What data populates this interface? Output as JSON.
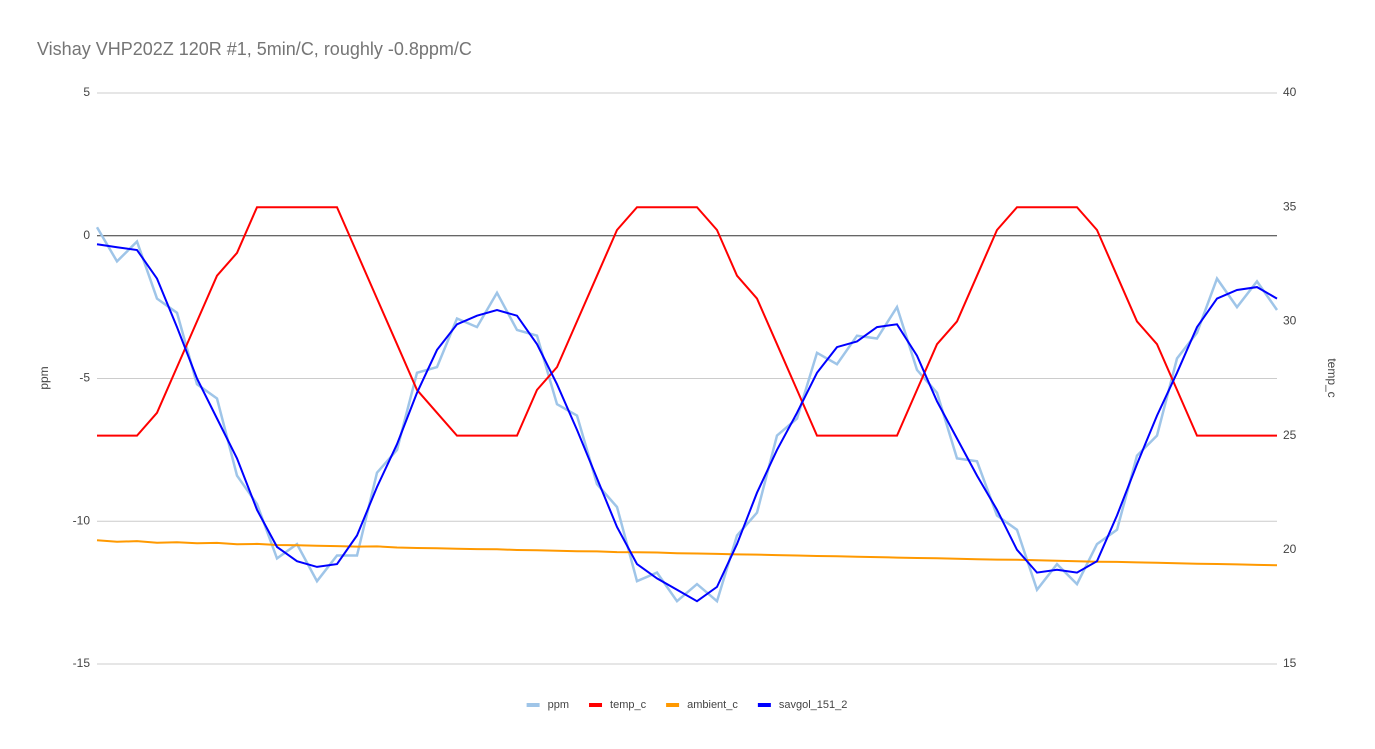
{
  "chart_data": {
    "type": "line",
    "title": "Vishay VHP202Z 120R #1, 5min/C, roughly -0.8ppm/C",
    "y_label": "ppm",
    "y2_label": "temp_c",
    "ylim": [
      -15,
      5
    ],
    "yticks": [
      -15,
      -10,
      -5,
      0,
      5
    ],
    "y2lim": [
      15,
      40
    ],
    "y2ticks": [
      15,
      20,
      25,
      30,
      35,
      40
    ],
    "grid": true,
    "legend": "bottom",
    "series": [
      {
        "name": "ppm",
        "color": "#9fc5e8",
        "values": [
          0.3,
          -0.9,
          -0.2,
          -2.2,
          -2.7,
          -5.2,
          -5.7,
          -8.4,
          -9.4,
          -11.3,
          -10.8,
          -12.1,
          -11.2,
          -11.2,
          -8.3,
          -7.5,
          -4.8,
          -4.6,
          -2.9,
          -3.2,
          -2.0,
          -3.3,
          -3.5,
          -5.9,
          -6.3,
          -8.7,
          -9.5,
          -12.1,
          -11.8,
          -12.8,
          -12.2,
          -12.8,
          -10.5,
          -9.7,
          -7.0,
          -6.4,
          -4.1,
          -4.5,
          -3.5,
          -3.6,
          -2.5,
          -4.7,
          -5.5,
          -7.8,
          -7.9,
          -9.8,
          -10.3,
          -12.4,
          -11.5,
          -12.2,
          -10.8,
          -10.3,
          -7.7,
          -7.0,
          -4.3,
          -3.4,
          -1.5,
          -2.5,
          -1.6,
          -2.6
        ]
      },
      {
        "name": "temp_c",
        "color": "#ff0000",
        "axis": "y2",
        "values": [
          25,
          25,
          25,
          26,
          28,
          30,
          32,
          33,
          35,
          35,
          35,
          35,
          35,
          33,
          31,
          29,
          27,
          26,
          25,
          25,
          25,
          25,
          27,
          28,
          30,
          32,
          34,
          35,
          35,
          35,
          35,
          34,
          32,
          31,
          29,
          27,
          25,
          25,
          25,
          25,
          25,
          27,
          29,
          30,
          32,
          34,
          35,
          35,
          35,
          35,
          34,
          32,
          30,
          29,
          27,
          25,
          25,
          25,
          25,
          25
        ]
      },
      {
        "name": "ambient_c",
        "color": "#ff9900",
        "axis": "y2",
        "values": [
          20.42,
          20.35,
          20.38,
          20.31,
          20.33,
          20.29,
          20.3,
          20.24,
          20.26,
          20.21,
          20.2,
          20.18,
          20.16,
          20.14,
          20.15,
          20.1,
          20.08,
          20.07,
          20.05,
          20.03,
          20.02,
          19.99,
          19.98,
          19.96,
          19.94,
          19.93,
          19.9,
          19.89,
          19.88,
          19.85,
          19.84,
          19.82,
          19.8,
          19.79,
          19.77,
          19.75,
          19.73,
          19.72,
          19.7,
          19.68,
          19.66,
          19.64,
          19.63,
          19.61,
          19.59,
          19.57,
          19.56,
          19.54,
          19.52,
          19.5,
          19.48,
          19.47,
          19.45,
          19.43,
          19.41,
          19.39,
          19.38,
          19.36,
          19.34,
          19.32
        ]
      },
      {
        "name": "savgol_151_2",
        "color": "#0000ff",
        "values": [
          -0.3,
          -0.4,
          -0.5,
          -1.5,
          -3.2,
          -5,
          -6.4,
          -7.8,
          -9.6,
          -10.9,
          -11.4,
          -11.6,
          -11.5,
          -10.5,
          -8.8,
          -7.3,
          -5.5,
          -4,
          -3.1,
          -2.8,
          -2.6,
          -2.8,
          -3.8,
          -5.2,
          -6.8,
          -8.5,
          -10.2,
          -11.5,
          -12,
          -12.4,
          -12.8,
          -12.3,
          -10.8,
          -9,
          -7.5,
          -6.2,
          -4.8,
          -3.9,
          -3.7,
          -3.2,
          -3.1,
          -4.2,
          -5.8,
          -7.1,
          -8.4,
          -9.6,
          -11,
          -11.8,
          -11.7,
          -11.8,
          -11.4,
          -9.8,
          -8,
          -6.3,
          -4.8,
          -3.2,
          -2.2,
          -1.9,
          -1.8,
          -2.2
        ]
      }
    ]
  }
}
